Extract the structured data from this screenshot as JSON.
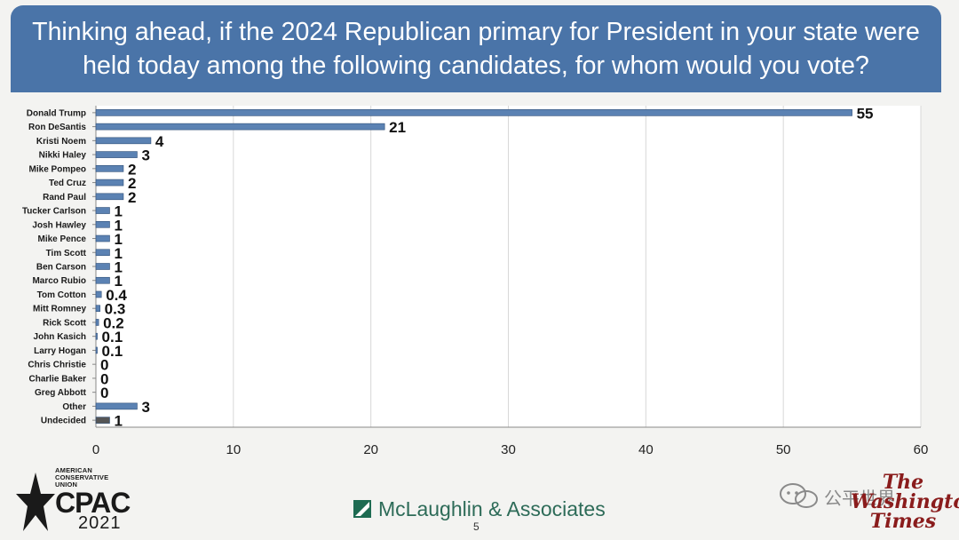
{
  "title": {
    "line1": "Thinking ahead, if the 2024 Republican primary for President in your state were",
    "line2": "held today among the following candidates, for whom would you vote?"
  },
  "colors": {
    "banner": "#4a74a8",
    "bar": "#5b82b3",
    "bar_undecided": "#555555",
    "gridline": "#d8d8d8"
  },
  "chart_data": {
    "type": "bar",
    "orientation": "horizontal",
    "categories": [
      "Donald Trump",
      "Ron DeSantis",
      "Kristi Noem",
      "Nikki Haley",
      "Mike Pompeo",
      "Ted Cruz",
      "Rand Paul",
      "Tucker Carlson",
      "Josh Hawley",
      "Mike Pence",
      "Tim Scott",
      "Ben Carson",
      "Marco Rubio",
      "Tom Cotton",
      "Mitt Romney",
      "Rick Scott",
      "John Kasich",
      "Larry Hogan",
      "Chris Christie",
      "Charlie Baker",
      "Greg Abbott",
      "Other",
      "Undecided"
    ],
    "values": [
      55,
      21,
      4,
      3,
      2,
      2,
      2,
      1,
      1,
      1,
      1,
      1,
      1,
      0.4,
      0.3,
      0.2,
      0.1,
      0.1,
      0,
      0,
      0,
      3,
      1
    ],
    "xlim": [
      0,
      60
    ],
    "xticks": [
      0,
      10,
      20,
      30,
      40,
      50,
      60
    ],
    "xlabel": "",
    "ylabel": "",
    "grid": true
  },
  "footer": {
    "cpac_org": "AMERICAN CONSERVATIVE UNION",
    "cpac_name": "CPAC",
    "cpac_year": "2021",
    "pollster": "McLaughlin & Associates",
    "page": "5",
    "watermark": "公平世界",
    "newspaper": "The Washington Times"
  }
}
